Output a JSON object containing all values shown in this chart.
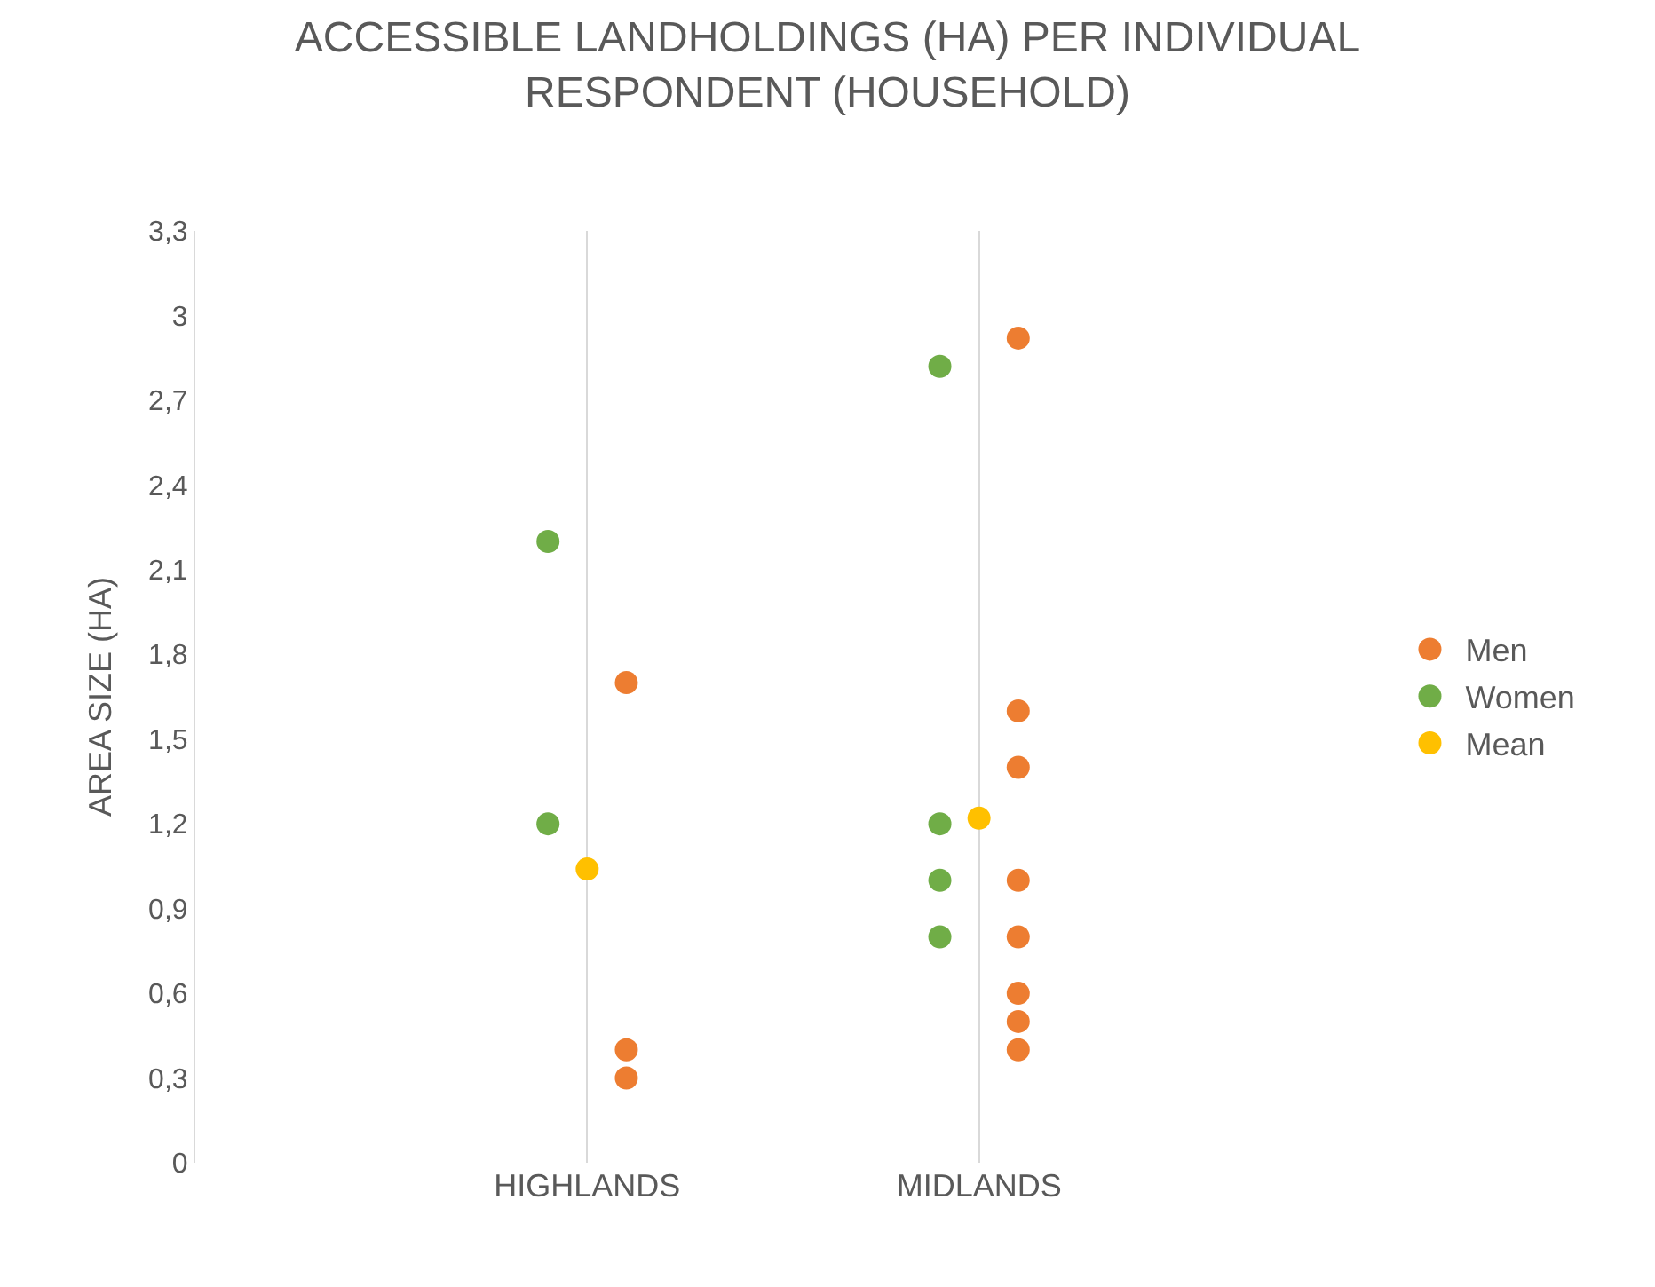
{
  "chart_data": {
    "type": "scatter",
    "title": "ACCESSIBLE LANDHOLDINGS (HA) PER INDIVIDUAL RESPONDENT (HOUSEHOLD)",
    "ylabel": "AREA SIZE (HA)",
    "categories": [
      null,
      "HIGHLANDS",
      "MIDLANDS",
      null
    ],
    "ylim": [
      0,
      3.3
    ],
    "yticks": [
      0,
      {
        "value": 0.3,
        "label": "0,3"
      },
      {
        "value": 0.6,
        "label": "0,6"
      },
      {
        "value": 0.9,
        "label": "0,9"
      },
      {
        "value": 1.2,
        "label": "1,2"
      },
      {
        "value": 1.5,
        "label": "1,5"
      },
      {
        "value": 1.8,
        "label": "1,8"
      },
      {
        "value": 2.1,
        "label": "2,1"
      },
      {
        "value": 2.4,
        "label": "2,4"
      },
      {
        "value": 2.7,
        "label": "2,7"
      },
      3,
      {
        "value": 3.3,
        "label": "3,3"
      }
    ],
    "grid": "x",
    "legend": "right",
    "marker": "circle",
    "series": [
      {
        "name": "Men",
        "color": "#ed7d31",
        "x": [
          "HIGHLANDS",
          "HIGHLANDS",
          "HIGHLANDS",
          "MIDLANDS",
          "MIDLANDS",
          "MIDLANDS",
          "MIDLANDS",
          "MIDLANDS",
          "MIDLANDS",
          "MIDLANDS",
          "MIDLANDS"
        ],
        "values": [
          1.7,
          0.4,
          0.3,
          2.92,
          1.6,
          1.4,
          1.0,
          0.8,
          0.6,
          0.5,
          0.4
        ]
      },
      {
        "name": "Women",
        "color": "#70ad47",
        "x": [
          "HIGHLANDS",
          "HIGHLANDS",
          "MIDLANDS",
          "MIDLANDS",
          "MIDLANDS",
          "MIDLANDS"
        ],
        "values": [
          2.2,
          1.2,
          2.82,
          1.2,
          1.0,
          0.8
        ]
      },
      {
        "name": "Mean",
        "color": "#ffc000",
        "x": [
          "HIGHLANDS",
          "MIDLANDS"
        ],
        "values": [
          1.04,
          1.22
        ]
      }
    ]
  }
}
